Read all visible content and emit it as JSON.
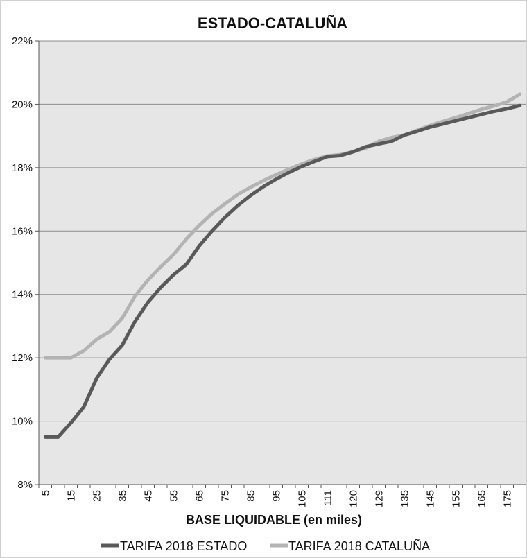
{
  "chart_data": {
    "type": "line",
    "title": "ESTADO-CATALUÑA",
    "xlabel": "BASE LIQUIDABLE (en miles)",
    "ylabel": "",
    "ylim": [
      0.08,
      0.22
    ],
    "yticks": [
      "8%",
      "10%",
      "12%",
      "14%",
      "16%",
      "18%",
      "20%",
      "22%"
    ],
    "x": [
      5,
      10,
      15,
      20,
      25,
      30,
      35,
      40,
      45,
      50,
      55,
      60,
      65,
      70,
      75,
      80,
      85,
      90,
      95,
      100,
      105,
      110,
      111,
      115,
      120,
      125,
      129,
      130,
      135,
      140,
      145,
      150,
      155,
      160,
      165,
      170,
      175,
      180
    ],
    "x_tick_labels": [
      "5",
      "15",
      "25",
      "35",
      "45",
      "55",
      "65",
      "75",
      "85",
      "95",
      "105",
      "111",
      "120",
      "129",
      "135",
      "145",
      "155",
      "165",
      "175"
    ],
    "grid": true,
    "legend_position": "bottom",
    "series": [
      {
        "name": "TARIFA 2018 ESTADO",
        "color": "#595959",
        "values": [
          0.095,
          0.095,
          0.0995,
          0.1045,
          0.1135,
          0.1195,
          0.124,
          0.1315,
          0.1375,
          0.1422,
          0.1462,
          0.1495,
          0.1553,
          0.16,
          0.1643,
          0.168,
          0.1712,
          0.174,
          0.1764,
          0.1785,
          0.1804,
          0.182,
          0.1835,
          0.1838,
          0.185,
          0.1866,
          0.1875,
          0.1883,
          0.1903,
          0.1915,
          0.1928,
          0.1938,
          0.1948,
          0.1958,
          0.1968,
          0.1978,
          0.1986,
          0.1996
        ]
      },
      {
        "name": "TARIFA 2018 CATALUÑA",
        "color": "#b3b3b3",
        "values": [
          0.12,
          0.12,
          0.12,
          0.1222,
          0.1258,
          0.1282,
          0.1325,
          0.1395,
          0.1445,
          0.1487,
          0.1526,
          0.1575,
          0.1618,
          0.1655,
          0.1686,
          0.1715,
          0.1738,
          0.1759,
          0.1778,
          0.1795,
          0.1812,
          0.1826,
          0.1837,
          0.1841,
          0.185,
          0.1862,
          0.1883,
          0.1895,
          0.1903,
          0.1918,
          0.1933,
          0.1946,
          0.1958,
          0.1971,
          0.1984,
          0.1995,
          0.2008,
          0.2032
        ]
      }
    ]
  }
}
